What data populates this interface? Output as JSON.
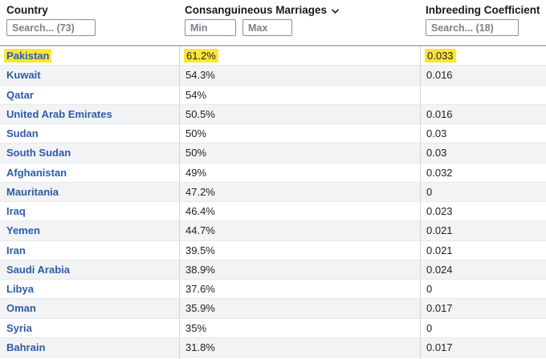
{
  "table": {
    "columns": [
      {
        "label": "Country",
        "filter_placeholder": "Search... (73)"
      },
      {
        "label": "Consanguineous Marriages",
        "sort_state": "descending",
        "min_placeholder": "Min",
        "max_placeholder": "Max"
      },
      {
        "label": "Inbreeding Coefficient",
        "filter_placeholder": "Search... (18)"
      }
    ],
    "rows": [
      {
        "country": "Pakistan",
        "marriages": "61.2%",
        "coefficient": "0.033",
        "highlighted": true
      },
      {
        "country": "Kuwait",
        "marriages": "54.3%",
        "coefficient": "0.016",
        "highlighted": false
      },
      {
        "country": "Qatar",
        "marriages": "54%",
        "coefficient": "",
        "highlighted": false
      },
      {
        "country": "United Arab Emirates",
        "marriages": "50.5%",
        "coefficient": "0.016",
        "highlighted": false
      },
      {
        "country": "Sudan",
        "marriages": "50%",
        "coefficient": "0.03",
        "highlighted": false
      },
      {
        "country": "South Sudan",
        "marriages": "50%",
        "coefficient": "0.03",
        "highlighted": false
      },
      {
        "country": "Afghanistan",
        "marriages": "49%",
        "coefficient": "0.032",
        "highlighted": false
      },
      {
        "country": "Mauritania",
        "marriages": "47.2%",
        "coefficient": "0",
        "highlighted": false
      },
      {
        "country": "Iraq",
        "marriages": "46.4%",
        "coefficient": "0.023",
        "highlighted": false
      },
      {
        "country": "Yemen",
        "marriages": "44.7%",
        "coefficient": "0.021",
        "highlighted": false
      },
      {
        "country": "Iran",
        "marriages": "39.5%",
        "coefficient": "0.021",
        "highlighted": false
      },
      {
        "country": "Saudi Arabia",
        "marriages": "38.9%",
        "coefficient": "0.024",
        "highlighted": false
      },
      {
        "country": "Libya",
        "marriages": "37.6%",
        "coefficient": "0",
        "highlighted": false
      },
      {
        "country": "Oman",
        "marriages": "35.9%",
        "coefficient": "0.017",
        "highlighted": false
      },
      {
        "country": "Syria",
        "marriages": "35%",
        "coefficient": "0",
        "highlighted": false
      },
      {
        "country": "Bahrain",
        "marriages": "31.8%",
        "coefficient": "0.017",
        "highlighted": false
      }
    ]
  },
  "icons": {
    "sort_descending": "chevron-down"
  },
  "colors": {
    "highlight_yellow": "#fbe636",
    "link_blue": "#2d5ca8",
    "alt_row_gray": "#f2f3f4",
    "row_border": "#e6e8ea",
    "column_border": "#d4d7db",
    "table_top_border": "#b6bcc5",
    "header_text": "#181a1c",
    "value_text": "#202122",
    "placeholder_text": "#7b8187"
  }
}
